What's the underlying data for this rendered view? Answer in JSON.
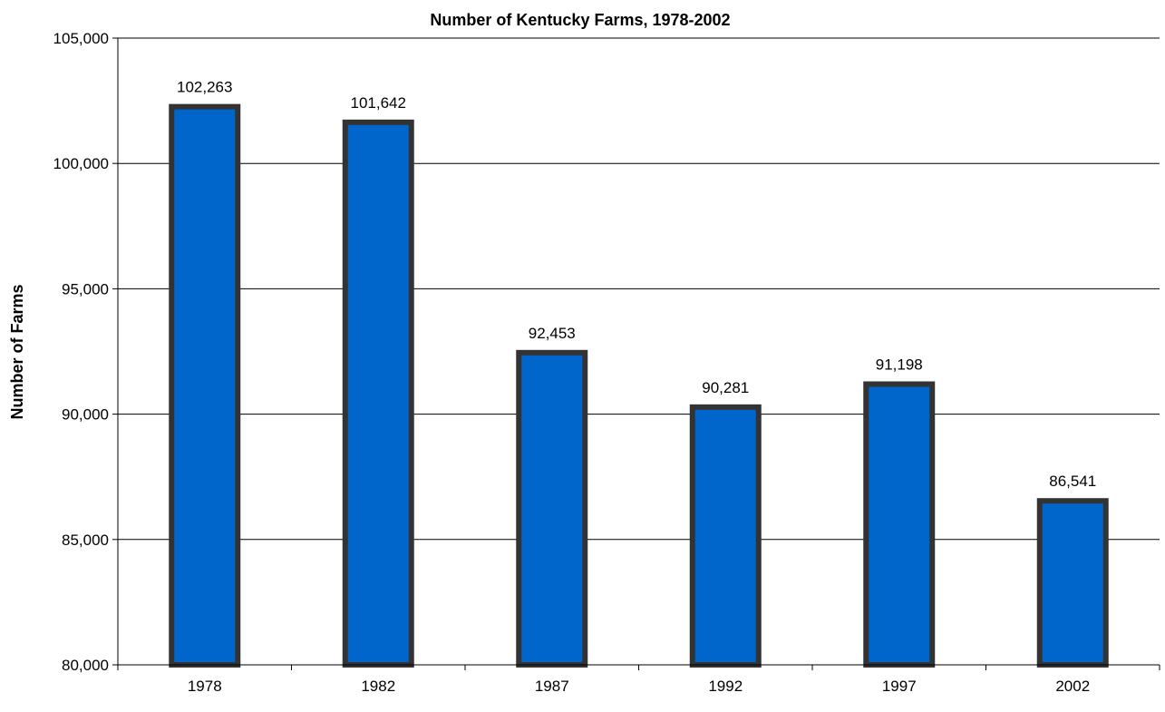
{
  "chart_data": {
    "type": "bar",
    "title": "Number of Kentucky Farms, 1978-2002",
    "xlabel": "",
    "ylabel": "Number of Farms",
    "categories": [
      "1978",
      "1982",
      "1987",
      "1992",
      "1997",
      "2002"
    ],
    "values": [
      102263,
      101642,
      92453,
      90281,
      91198,
      86541
    ],
    "data_labels": [
      "102,263",
      "101,642",
      "92,453",
      "90,281",
      "91,198",
      "86,541"
    ],
    "ylim": [
      80000,
      105000
    ],
    "yticks": [
      80000,
      85000,
      90000,
      95000,
      100000,
      105000
    ],
    "ytick_labels": [
      "80,000",
      "85,000",
      "90,000",
      "95,000",
      "100,000",
      "105,000"
    ],
    "grid": true,
    "legend": "none",
    "colors": {
      "bar_fill": "#0066CC",
      "bar_border": "#333333",
      "grid": "#000000"
    }
  }
}
